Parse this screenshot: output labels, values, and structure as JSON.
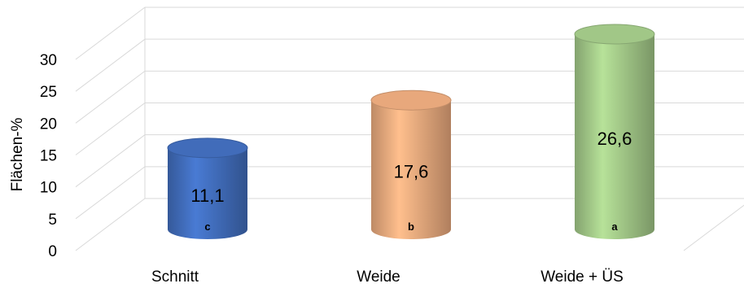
{
  "chart_data": {
    "type": "bar",
    "ylabel": "Flächen-%",
    "ylim": [
      0,
      30
    ],
    "yticks": [
      0,
      5,
      10,
      15,
      20,
      25,
      30
    ],
    "grid": true,
    "categories": [
      "Schnitt",
      "Weide",
      "Weide + ÜS"
    ],
    "values": [
      11.1,
      17.6,
      26.6
    ],
    "value_labels": [
      "11,1",
      "17,6",
      "26,6"
    ],
    "significance_letters": [
      "c",
      "b",
      "a"
    ],
    "colors": [
      "#4472c4",
      "#f4b183",
      "#a9d18e"
    ]
  }
}
